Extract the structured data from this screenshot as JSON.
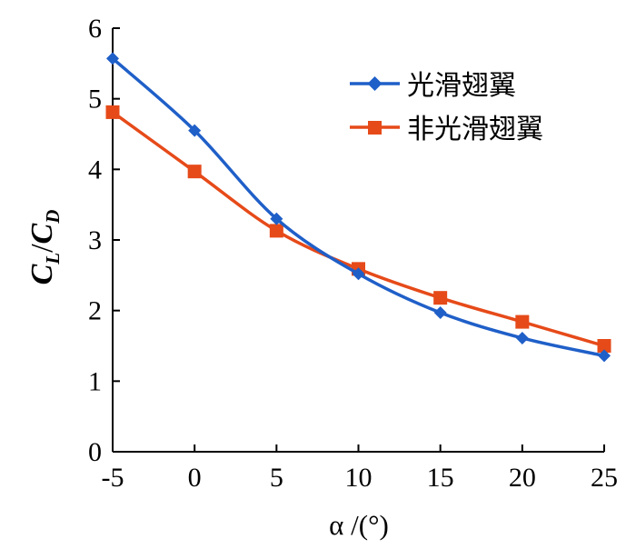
{
  "chart_data": {
    "type": "line",
    "x": [
      -5,
      0,
      5,
      10,
      15,
      20,
      25
    ],
    "series": [
      {
        "name": "光滑翅翼",
        "values": [
          5.57,
          4.55,
          3.3,
          2.52,
          1.97,
          1.61,
          1.36
        ],
        "color": "#1f5fc8",
        "marker": "diamond"
      },
      {
        "name": "非光滑翅翼",
        "values": [
          4.81,
          3.97,
          3.13,
          2.59,
          2.18,
          1.84,
          1.5
        ],
        "color": "#e64a19",
        "marker": "square"
      }
    ],
    "xlim": [
      -5,
      25
    ],
    "ylim": [
      0,
      6
    ],
    "x_ticks": [
      "-5",
      "0",
      "5",
      "10",
      "15",
      "20",
      "25"
    ],
    "y_ticks": [
      "0",
      "1",
      "2",
      "3",
      "4",
      "5",
      "6"
    ],
    "xlabel": "α /(°)",
    "ylabel": "C_L/C_D",
    "ylabel_parts": {
      "c1": "C",
      "sub1": "L",
      "slash": "/",
      "c2": "C",
      "sub2": "D"
    },
    "legend_position": "top-right",
    "grid": false
  }
}
